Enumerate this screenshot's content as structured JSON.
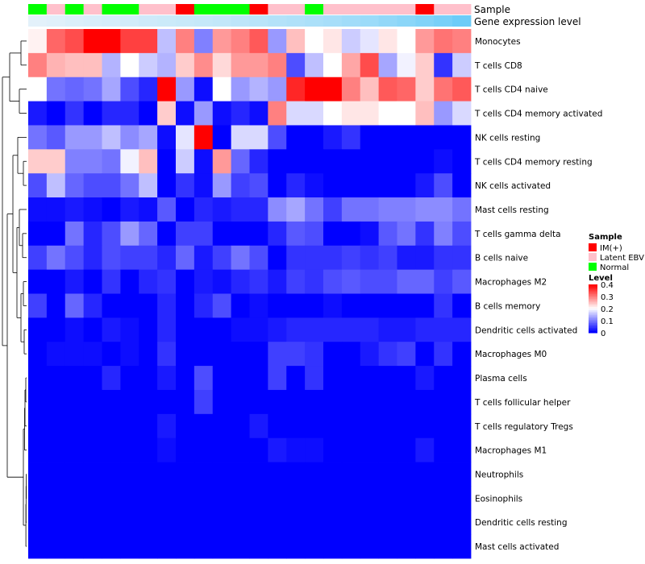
{
  "chart_data": {
    "type": "heatmap",
    "annotation_titles": {
      "sample": "Sample",
      "expression": "Gene expression level"
    },
    "sample_groups": [
      "Normal",
      "Latent EBV",
      "Normal",
      "Latent EBV",
      "Normal",
      "Normal",
      "Latent EBV",
      "Latent EBV",
      "IM(+)",
      "Normal",
      "Normal",
      "Normal",
      "IM(+)",
      "Latent EBV",
      "Latent EBV",
      "Normal",
      "Latent EBV",
      "Latent EBV",
      "Latent EBV",
      "Latent EBV",
      "Latent EBV",
      "IM(+)",
      "Latent EBV",
      "Latent EBV"
    ],
    "expression_levels": [
      0.02,
      0.04,
      0.07,
      0.09,
      0.11,
      0.13,
      0.16,
      0.18,
      0.2,
      0.22,
      0.24,
      0.27,
      0.3,
      0.33,
      0.36,
      0.39,
      0.42,
      0.46,
      0.5,
      0.55,
      0.6,
      0.66,
      0.73,
      0.8
    ],
    "row_labels": [
      "Monocytes",
      "T cells CD8",
      "T cells CD4 naive",
      "T cells CD4 memory activated",
      "NK cells resting",
      "T cells CD4 memory resting",
      "NK cells activated",
      "Mast cells resting",
      "T cells gamma delta",
      "B cells naive",
      "Macrophages M2",
      "B cells memory",
      "Dendritic cells activated",
      "Macrophages M0",
      "Plasma cells",
      "T cells follicular helper",
      "T cells regulatory  Tregs",
      "Macrophages M1",
      "Neutrophils",
      "Eosinophils",
      "Dendritic cells resting",
      "Mast cells activated"
    ],
    "values": [
      [
        0.21,
        0.32,
        0.34,
        0.4,
        0.4,
        0.35,
        0.35,
        0.15,
        0.3,
        0.1,
        0.28,
        0.3,
        0.33,
        0.12,
        0.25,
        0.2,
        0.22,
        0.16,
        0.18,
        0.22,
        0.2,
        0.28,
        0.31,
        0.3
      ],
      [
        0.3,
        0.26,
        0.25,
        0.25,
        0.14,
        0.2,
        0.16,
        0.14,
        0.24,
        0.29,
        0.23,
        0.28,
        0.28,
        0.3,
        0.06,
        0.15,
        0.2,
        0.27,
        0.34,
        0.13,
        0.19,
        0.24,
        0.04,
        0.16
      ],
      [
        0.2,
        0.09,
        0.08,
        0.09,
        0.13,
        0.06,
        0.03,
        0.4,
        0.12,
        0.01,
        0.2,
        0.12,
        0.14,
        0.12,
        0.37,
        0.4,
        0.4,
        0.3,
        0.25,
        0.33,
        0.32,
        0.24,
        0.31,
        0.33
      ],
      [
        0.02,
        0.0,
        0.04,
        0.0,
        0.03,
        0.03,
        0.0,
        0.24,
        0.01,
        0.12,
        0.01,
        0.03,
        0.01,
        0.3,
        0.17,
        0.17,
        0.2,
        0.22,
        0.22,
        0.2,
        0.2,
        0.25,
        0.12,
        0.17
      ],
      [
        0.09,
        0.07,
        0.12,
        0.12,
        0.15,
        0.11,
        0.13,
        0.01,
        0.18,
        0.4,
        0.0,
        0.17,
        0.17,
        0.06,
        0.0,
        0.0,
        0.02,
        0.04,
        0.0,
        0.0,
        0.0,
        0.0,
        0.0,
        0.0
      ],
      [
        0.24,
        0.24,
        0.1,
        0.1,
        0.09,
        0.19,
        0.25,
        0.0,
        0.16,
        0.01,
        0.28,
        0.08,
        0.03,
        0.0,
        0.0,
        0.0,
        0.0,
        0.0,
        0.0,
        0.0,
        0.0,
        0.0,
        0.01,
        0.0
      ],
      [
        0.06,
        0.15,
        0.08,
        0.06,
        0.06,
        0.09,
        0.15,
        0.0,
        0.04,
        0.01,
        0.12,
        0.05,
        0.06,
        0.0,
        0.03,
        0.01,
        0.0,
        0.0,
        0.0,
        0.0,
        0.0,
        0.02,
        0.06,
        0.0
      ],
      [
        0.01,
        0.01,
        0.02,
        0.01,
        0.0,
        0.02,
        0.01,
        0.07,
        0.0,
        0.03,
        0.02,
        0.03,
        0.03,
        0.11,
        0.13,
        0.09,
        0.05,
        0.09,
        0.09,
        0.1,
        0.1,
        0.11,
        0.11,
        0.09
      ],
      [
        0.0,
        0.0,
        0.09,
        0.03,
        0.06,
        0.12,
        0.08,
        0.0,
        0.05,
        0.05,
        0.0,
        0.0,
        0.0,
        0.03,
        0.07,
        0.06,
        0.0,
        0.0,
        0.01,
        0.07,
        0.09,
        0.04,
        0.1,
        0.06
      ],
      [
        0.05,
        0.09,
        0.06,
        0.03,
        0.06,
        0.05,
        0.05,
        0.03,
        0.08,
        0.02,
        0.05,
        0.09,
        0.06,
        0.0,
        0.04,
        0.04,
        0.04,
        0.05,
        0.04,
        0.05,
        0.02,
        0.02,
        0.04,
        0.04
      ],
      [
        0.0,
        0.0,
        0.02,
        0.0,
        0.04,
        0.0,
        0.03,
        0.04,
        0.0,
        0.02,
        0.01,
        0.03,
        0.04,
        0.02,
        0.05,
        0.04,
        0.06,
        0.07,
        0.06,
        0.06,
        0.08,
        0.08,
        0.05,
        0.07
      ],
      [
        0.05,
        0.0,
        0.08,
        0.03,
        0.0,
        0.0,
        0.0,
        0.03,
        0.0,
        0.03,
        0.06,
        0.0,
        0.01,
        0.0,
        0.0,
        0.0,
        0.01,
        0.0,
        0.0,
        0.0,
        0.0,
        0.0,
        0.04,
        0.0
      ],
      [
        0.0,
        0.0,
        0.01,
        0.0,
        0.02,
        0.01,
        0.0,
        0.03,
        0.0,
        0.0,
        0.0,
        0.01,
        0.01,
        0.02,
        0.03,
        0.03,
        0.03,
        0.03,
        0.03,
        0.02,
        0.02,
        0.03,
        0.03,
        0.03
      ],
      [
        0.0,
        0.01,
        0.01,
        0.01,
        0.0,
        0.01,
        0.0,
        0.04,
        0.0,
        0.0,
        0.0,
        0.0,
        0.0,
        0.05,
        0.05,
        0.04,
        0.0,
        0.0,
        0.02,
        0.04,
        0.05,
        0.0,
        0.04,
        0.0
      ],
      [
        0.0,
        0.0,
        0.0,
        0.0,
        0.03,
        0.0,
        0.0,
        0.02,
        0.0,
        0.06,
        0.0,
        0.0,
        0.0,
        0.05,
        0.0,
        0.04,
        0.0,
        0.0,
        0.0,
        0.0,
        0.0,
        0.02,
        0.0,
        0.0
      ],
      [
        0.0,
        0.0,
        0.0,
        0.0,
        0.0,
        0.0,
        0.0,
        0.0,
        0.0,
        0.05,
        0.0,
        0.0,
        0.0,
        0.0,
        0.0,
        0.0,
        0.0,
        0.0,
        0.0,
        0.0,
        0.0,
        0.0,
        0.0,
        0.0
      ],
      [
        0.0,
        0.0,
        0.0,
        0.0,
        0.0,
        0.0,
        0.0,
        0.02,
        0.0,
        0.0,
        0.0,
        0.0,
        0.02,
        0.0,
        0.0,
        0.0,
        0.0,
        0.0,
        0.0,
        0.0,
        0.0,
        0.0,
        0.0,
        0.0
      ],
      [
        0.0,
        0.0,
        0.0,
        0.0,
        0.0,
        0.0,
        0.0,
        0.01,
        0.0,
        0.0,
        0.0,
        0.0,
        0.0,
        0.02,
        0.01,
        0.01,
        0.0,
        0.0,
        0.0,
        0.0,
        0.0,
        0.02,
        0.0,
        0.0
      ],
      [
        0.0,
        0.0,
        0.0,
        0.0,
        0.0,
        0.0,
        0.0,
        0.0,
        0.0,
        0.0,
        0.0,
        0.0,
        0.0,
        0.0,
        0.0,
        0.0,
        0.0,
        0.0,
        0.0,
        0.0,
        0.0,
        0.0,
        0.0,
        0.0
      ],
      [
        0.0,
        0.0,
        0.0,
        0.0,
        0.0,
        0.0,
        0.0,
        0.0,
        0.0,
        0.0,
        0.0,
        0.0,
        0.0,
        0.0,
        0.0,
        0.0,
        0.0,
        0.0,
        0.0,
        0.0,
        0.0,
        0.0,
        0.0,
        0.0
      ],
      [
        0.0,
        0.0,
        0.0,
        0.0,
        0.0,
        0.0,
        0.0,
        0.0,
        0.0,
        0.0,
        0.0,
        0.0,
        0.0,
        0.0,
        0.0,
        0.0,
        0.0,
        0.0,
        0.0,
        0.0,
        0.0,
        0.0,
        0.0,
        0.0
      ],
      [
        0.0,
        0.0,
        0.0,
        0.0,
        0.0,
        0.0,
        0.0,
        0.0,
        0.0,
        0.0,
        0.0,
        0.0,
        0.0,
        0.0,
        0.0,
        0.0,
        0.0,
        0.0,
        0.0,
        0.0,
        0.0,
        0.0,
        0.0,
        0.0
      ]
    ],
    "color_scale": {
      "low": "#0000ff",
      "mid": "#ffffff",
      "high": "#ff0000",
      "min": 0,
      "mid_value": 0.2,
      "max": 0.4
    },
    "legend": {
      "sample_title": "Sample",
      "sample_entries": [
        {
          "label": "IM(+)",
          "color": "#ff0000"
        },
        {
          "label": "Latent EBV",
          "color": "#ffc0cb"
        },
        {
          "label": "Normal",
          "color": "#00ff00"
        }
      ],
      "level_title": "Level",
      "level_ticks": [
        "0.4",
        "0.3",
        "0.2",
        "0.1",
        "0"
      ],
      "position": "right"
    },
    "expression_bar_colors": {
      "low": "#e6f2fa",
      "high": "#4fc3f7"
    }
  }
}
